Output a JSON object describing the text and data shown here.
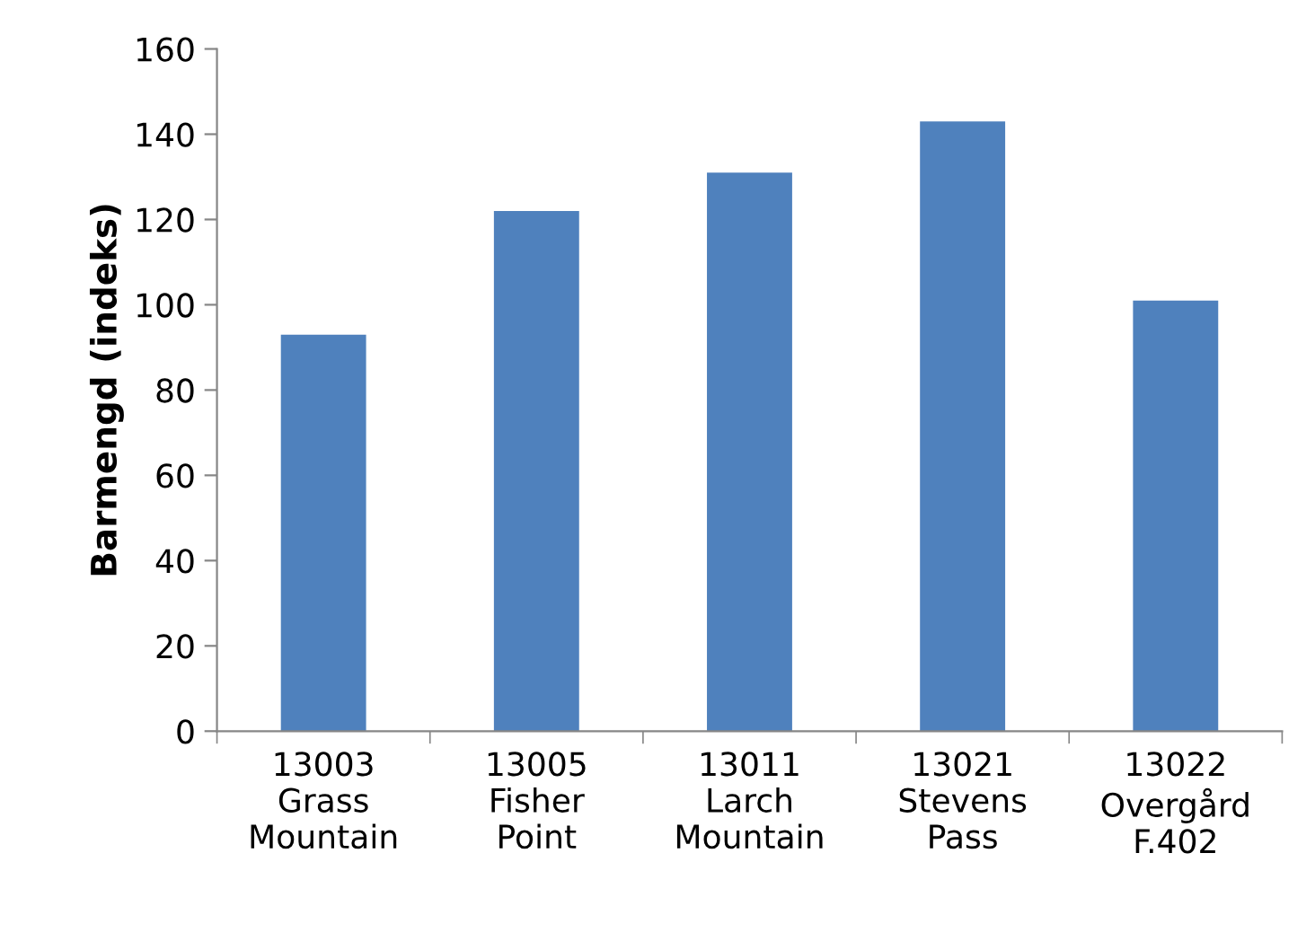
{
  "chart_data": {
    "type": "bar",
    "ylabel": "Barmengd (indeks)",
    "categories": [
      "13003\nGrass\nMountain",
      "13005\nFisher\nPoint",
      "13011\nLarch\nMountain",
      "13021\nStevens\nPass",
      "13022\nOvergård\nF.402"
    ],
    "values": [
      93,
      122,
      131,
      143,
      101
    ],
    "color": "#4f81bd",
    "ylim": [
      0,
      160
    ],
    "yticks": [
      0,
      20,
      40,
      60,
      80,
      100,
      120,
      140,
      160
    ],
    "grid": false
  }
}
